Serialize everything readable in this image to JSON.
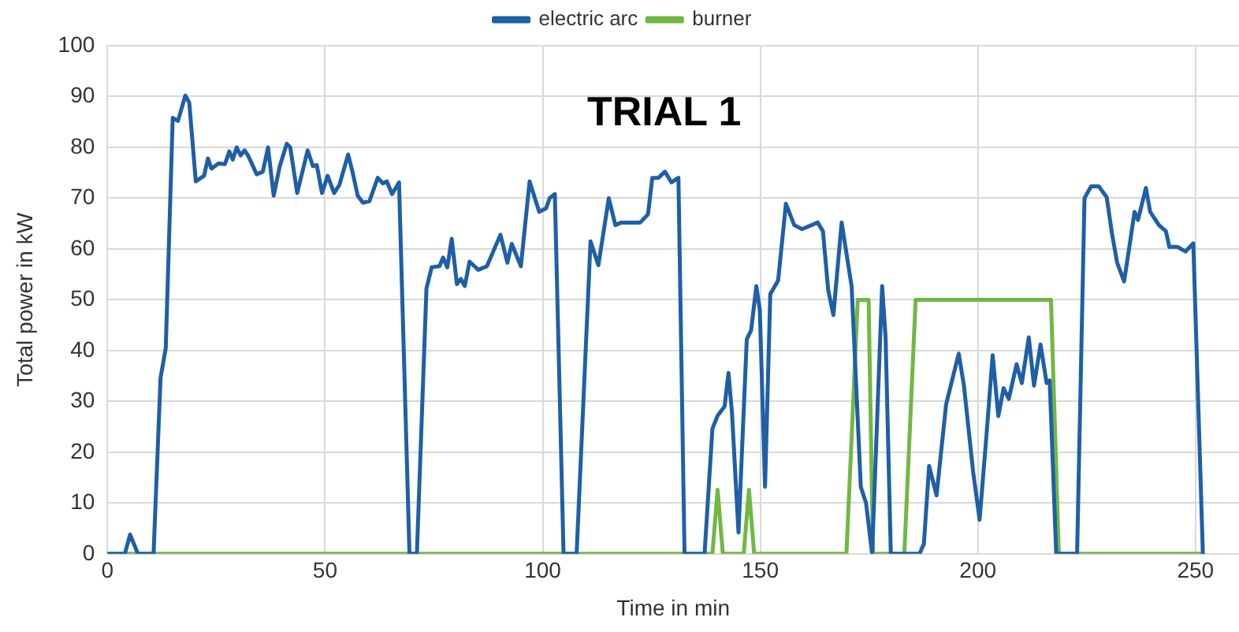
{
  "chart_data": {
    "type": "line",
    "title": "TRIAL 1",
    "xlabel": "Time in min",
    "ylabel": "Total power in kW",
    "xlim": [
      0,
      260
    ],
    "xticks": [
      0,
      50,
      100,
      150,
      200,
      250
    ],
    "ylim": [
      0,
      100
    ],
    "yticks": [
      0,
      10,
      20,
      30,
      40,
      50,
      60,
      70,
      80,
      90,
      100
    ],
    "grid": true,
    "legend": "top",
    "marker": "none",
    "line_style": "solid",
    "series": [
      {
        "name": "electric arc",
        "color": "#1f5fa8",
        "x": [
          0,
          4,
          5.2,
          7,
          10.6,
          12.2,
          13.4,
          15,
          16.2,
          17.9,
          18.8,
          20.3,
          22.2,
          23.1,
          23.9,
          25.5,
          27,
          28,
          28.8,
          29.7,
          30.6,
          31.5,
          32.3,
          34.3,
          35.7,
          36.9,
          38.2,
          39.6,
          41.2,
          42,
          43.6,
          46,
          47.2,
          48.1,
          49.3,
          50.6,
          52.1,
          53.3,
          55.3,
          56.3,
          57.5,
          58.7,
          60.2,
          62.1,
          63.3,
          64.2,
          65.4,
          67,
          69.4,
          71.1,
          73.3,
          74.5,
          76.3,
          77.1,
          78.1,
          79.1,
          80.3,
          81.2,
          82.1,
          83.2,
          85.2,
          87.2,
          90.3,
          91.9,
          92.9,
          95,
          97,
          99.2,
          100.8,
          101.6,
          102.8,
          104.8,
          107.8,
          111,
          112.8,
          115.2,
          116.7,
          118.1,
          122.4,
          124.2,
          125.2,
          126.6,
          128.1,
          129.6,
          131.2,
          132.6,
          137.2,
          139,
          140.2,
          141.8,
          142.7,
          143.5,
          145,
          146.9,
          147.9,
          149.1,
          149.9,
          151.1,
          152.3,
          154.1,
          155.9,
          157.8,
          159.6,
          163.2,
          164.4,
          165.6,
          166.8,
          168.7,
          171,
          173.1,
          174.3,
          175.7,
          178,
          178.8,
          180,
          186.6,
          187.6,
          188.8,
          190.5,
          192.7,
          195.6,
          196.8,
          198.9,
          200.4,
          202,
          203.4,
          204.7,
          205.9,
          207.1,
          208.9,
          210.1,
          211.7,
          212.9,
          214.4,
          215.8,
          216.5,
          218,
          222.8,
          224.5,
          226,
          227.8,
          229.6,
          230.8,
          232,
          233.6,
          235,
          236,
          236.8,
          238.6,
          239.6,
          241.6,
          243.2,
          244,
          245.9,
          247.7,
          249.5,
          251.7
        ],
        "values": [
          0,
          0,
          3.8,
          0,
          0,
          34.6,
          40.5,
          85.8,
          85.2,
          90.2,
          88.8,
          73.3,
          74.4,
          77.8,
          75.8,
          76.8,
          76.7,
          79.2,
          77.6,
          80,
          78.4,
          79.4,
          78.4,
          74.7,
          75.2,
          80,
          70.5,
          76.3,
          80.7,
          80,
          71,
          79.4,
          76.3,
          76.5,
          71,
          74.4,
          71,
          72.6,
          78.6,
          75.2,
          70.5,
          69.1,
          69.4,
          74,
          72.9,
          73.3,
          70.8,
          73.1,
          0,
          0,
          52.2,
          56.4,
          56.6,
          58.3,
          56.4,
          62,
          53.1,
          54.1,
          52.7,
          57.5,
          55.9,
          56.6,
          62.8,
          57.3,
          61,
          56.6,
          73.3,
          67.3,
          68,
          70,
          70.8,
          0,
          0,
          61.5,
          56.8,
          70,
          64.7,
          65.2,
          65.2,
          66.8,
          74,
          74,
          75.2,
          73.1,
          74,
          0,
          0,
          24.6,
          27.2,
          29,
          35.6,
          27.8,
          4.2,
          42.2,
          44,
          52.7,
          48,
          13.2,
          51.1,
          53.8,
          68.9,
          64.7,
          63.9,
          65.2,
          63.5,
          52,
          47,
          65.2,
          52.6,
          13.2,
          10,
          0,
          52.7,
          42.6,
          0,
          0,
          2,
          17.3,
          11.5,
          29.4,
          39.4,
          33.1,
          16.2,
          6.7,
          23.6,
          39.1,
          27.1,
          32.6,
          30.5,
          37.3,
          33.6,
          42.6,
          33.1,
          41.2,
          33.6,
          34.1,
          0,
          0,
          70,
          72.3,
          72.3,
          70.2,
          63.1,
          57.3,
          53.6,
          61.5,
          67.3,
          65.7,
          72,
          67.3,
          64.7,
          63.5,
          60.4,
          60.4,
          59.5,
          61.1,
          0
        ]
      },
      {
        "name": "burner",
        "color": "#70b843",
        "x": [
          0,
          139,
          140.2,
          141.4,
          146.2,
          147.4,
          148.6,
          169.8,
          172.4,
          174.9,
          175.9,
          183.1,
          185.7,
          216.8,
          218.6,
          251.7
        ],
        "values": [
          0,
          0,
          12.6,
          0,
          0,
          12.6,
          0,
          0,
          50,
          50,
          0,
          0,
          50,
          50,
          0,
          0
        ]
      }
    ]
  }
}
